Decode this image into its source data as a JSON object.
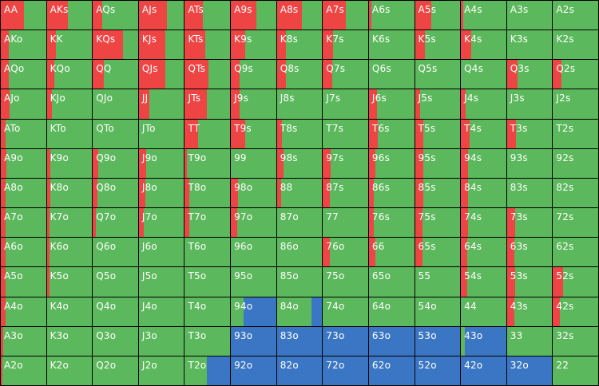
{
  "colors": {
    "raise": "#ef4444",
    "call": "#5cb85c",
    "fold": "#3b76c4"
  },
  "hands": [
    [
      "AA",
      "AKs",
      "AQs",
      "AJs",
      "ATs",
      "A9s",
      "A8s",
      "A7s",
      "A6s",
      "A5s",
      "A4s",
      "A3s",
      "A2s"
    ],
    [
      "AKo",
      "KK",
      "KQs",
      "KJs",
      "KTs",
      "K9s",
      "K8s",
      "K7s",
      "K6s",
      "K5s",
      "K4s",
      "K3s",
      "K2s"
    ],
    [
      "AQo",
      "KQo",
      "QQ",
      "QJs",
      "QTs",
      "Q9s",
      "Q8s",
      "Q7s",
      "Q6s",
      "Q5s",
      "Q4s",
      "Q3s",
      "Q2s"
    ],
    [
      "AJo",
      "KJo",
      "QJo",
      "JJ",
      "JTs",
      "J9s",
      "J8s",
      "J7s",
      "J6s",
      "J5s",
      "J4s",
      "J3s",
      "J2s"
    ],
    [
      "ATo",
      "KTo",
      "QTo",
      "JTo",
      "TT",
      "T9s",
      "T8s",
      "T7s",
      "T6s",
      "T5s",
      "T4s",
      "T3s",
      "T2s"
    ],
    [
      "A9o",
      "K9o",
      "Q9o",
      "J9o",
      "T9o",
      "99",
      "98s",
      "97s",
      "96s",
      "95s",
      "94s",
      "93s",
      "92s"
    ],
    [
      "A8o",
      "K8o",
      "Q8o",
      "J8o",
      "T8o",
      "98o",
      "88",
      "87s",
      "86s",
      "85s",
      "84s",
      "83s",
      "82s"
    ],
    [
      "A7o",
      "K7o",
      "Q7o",
      "J7o",
      "T7o",
      "97o",
      "87o",
      "77",
      "76s",
      "75s",
      "74s",
      "73s",
      "72s"
    ],
    [
      "A6o",
      "K6o",
      "Q6o",
      "J6o",
      "T6o",
      "96o",
      "86o",
      "76o",
      "66",
      "65s",
      "64s",
      "63s",
      "62s"
    ],
    [
      "A5o",
      "K5o",
      "Q5o",
      "J5o",
      "T5o",
      "95o",
      "85o",
      "75o",
      "65o",
      "55",
      "54s",
      "53s",
      "52s"
    ],
    [
      "A4o",
      "K4o",
      "Q4o",
      "J4o",
      "T4o",
      "94o",
      "84o",
      "74o",
      "64o",
      "54o",
      "44",
      "43s",
      "42s"
    ],
    [
      "A3o",
      "K3o",
      "Q3o",
      "J3o",
      "T3o",
      "93o",
      "83o",
      "73o",
      "63o",
      "53o",
      "43o",
      "33",
      "32s"
    ],
    [
      "A2o",
      "K2o",
      "Q2o",
      "J2o",
      "T2o",
      "92o",
      "82o",
      "72o",
      "62o",
      "52o",
      "42o",
      "32o",
      "22"
    ]
  ],
  "raise_freq": [
    [
      0.52,
      0.46,
      0.2,
      0.62,
      0.4,
      0.56,
      0.56,
      0.5,
      0.05,
      0.36,
      0.05,
      0.0,
      0.0
    ],
    [
      0.18,
      0.2,
      0.66,
      0.58,
      0.46,
      0.32,
      0.2,
      0.22,
      0.0,
      0.22,
      0.22,
      0.0,
      0.0
    ],
    [
      0.18,
      0.16,
      0.24,
      0.58,
      0.52,
      0.2,
      0.2,
      0.2,
      0.0,
      0.0,
      0.0,
      0.24,
      0.18
    ],
    [
      0.2,
      0.12,
      0.0,
      0.24,
      0.48,
      0.2,
      0.0,
      0.0,
      0.18,
      0.12,
      0.1,
      0.0,
      0.0
    ],
    [
      0.1,
      0.0,
      0.0,
      0.0,
      0.3,
      0.32,
      0.12,
      0.0,
      0.2,
      0.18,
      0.2,
      0.2,
      0.0
    ],
    [
      0.12,
      0.08,
      0.12,
      0.16,
      0.05,
      0.0,
      0.14,
      0.18,
      0.14,
      0.18,
      0.16,
      0.0,
      0.0
    ],
    [
      0.1,
      0.08,
      0.1,
      0.14,
      0.1,
      0.16,
      0.1,
      0.16,
      0.1,
      0.18,
      0.16,
      0.0,
      0.0
    ],
    [
      0.1,
      0.06,
      0.06,
      0.1,
      0.1,
      0.14,
      0.0,
      0.0,
      0.1,
      0.16,
      0.16,
      0.18,
      0.0
    ],
    [
      0.1,
      0.06,
      0.0,
      0.0,
      0.0,
      0.0,
      0.0,
      0.16,
      0.14,
      0.16,
      0.14,
      0.16,
      0.0
    ],
    [
      0.1,
      0.06,
      0.0,
      0.0,
      0.0,
      0.0,
      0.0,
      0.0,
      0.0,
      0.0,
      0.14,
      0.18,
      0.22
    ],
    [
      0.1,
      0.0,
      0.0,
      0.0,
      0.0,
      0.0,
      0.0,
      0.0,
      0.0,
      0.0,
      0.0,
      0.16,
      0.16
    ],
    [
      0.06,
      0.0,
      0.0,
      0.0,
      0.0,
      0.0,
      0.0,
      0.0,
      0.0,
      0.0,
      0.0,
      0.0,
      0.0
    ],
    [
      0.04,
      0.0,
      0.0,
      0.0,
      0.0,
      0.0,
      0.0,
      0.0,
      0.0,
      0.0,
      0.0,
      0.0,
      0.0
    ]
  ],
  "fold_freq": [
    [
      0,
      0,
      0,
      0,
      0,
      0,
      0,
      0,
      0,
      0,
      0,
      0,
      0
    ],
    [
      0,
      0,
      0,
      0,
      0,
      0,
      0,
      0,
      0,
      0,
      0,
      0,
      0
    ],
    [
      0,
      0,
      0,
      0,
      0,
      0,
      0,
      0,
      0,
      0,
      0,
      0,
      0
    ],
    [
      0,
      0,
      0,
      0,
      0,
      0,
      0,
      0,
      0,
      0,
      0,
      0,
      0
    ],
    [
      0,
      0,
      0,
      0,
      0,
      0,
      0,
      0,
      0,
      0,
      0,
      0,
      0
    ],
    [
      0,
      0,
      0,
      0,
      0,
      0,
      0,
      0,
      0,
      0,
      0,
      0,
      0
    ],
    [
      0,
      0,
      0,
      0,
      0,
      0,
      0,
      0,
      0,
      0,
      0,
      0,
      0
    ],
    [
      0,
      0,
      0,
      0,
      0,
      0,
      0,
      0,
      0,
      0,
      0,
      0,
      0
    ],
    [
      0,
      0,
      0,
      0,
      0,
      0,
      0,
      0,
      0,
      0,
      0,
      0,
      0
    ],
    [
      0,
      0,
      0,
      0,
      0,
      0,
      0,
      0,
      0,
      0,
      0,
      0,
      0
    ],
    [
      0,
      0,
      0,
      0,
      0,
      0.72,
      0.24,
      0,
      0,
      0,
      0,
      0,
      0
    ],
    [
      0,
      0,
      0,
      0,
      0,
      1,
      1,
      1,
      1,
      1,
      0.92,
      0,
      0
    ],
    [
      0,
      0,
      0,
      0,
      0.52,
      1,
      1,
      1,
      1,
      1,
      1,
      1,
      0
    ]
  ]
}
